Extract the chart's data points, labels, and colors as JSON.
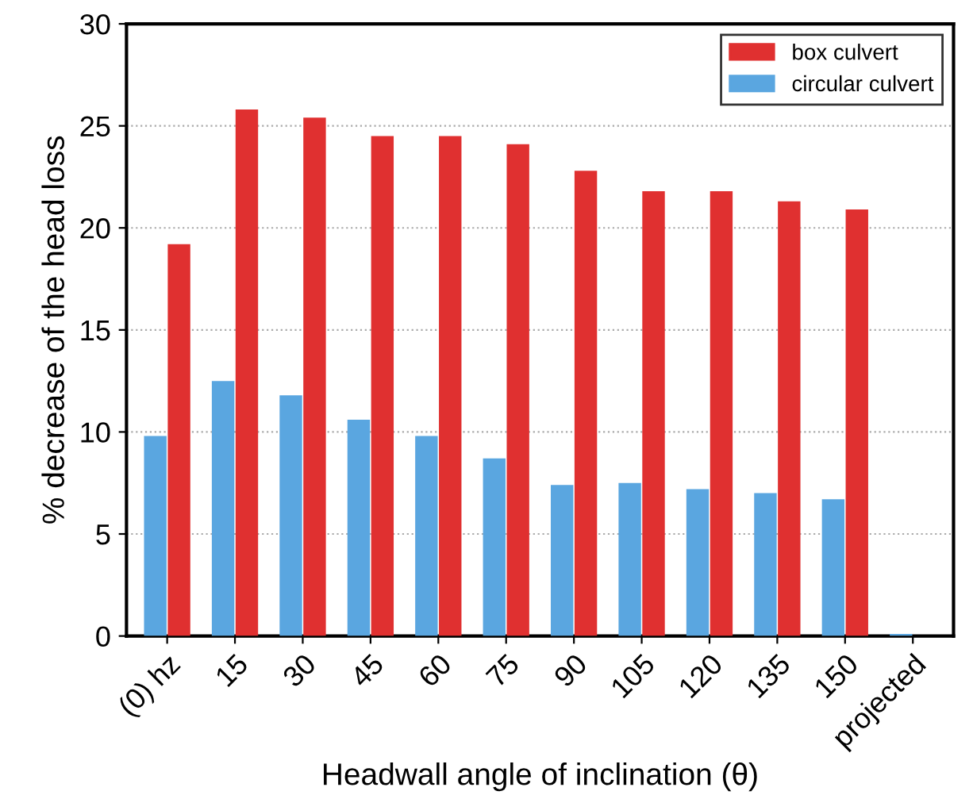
{
  "chart_data": {
    "type": "bar",
    "xlabel": "Headwall angle of inclination (θ)",
    "ylabel": "% decrease of the head loss",
    "categories": [
      "(0) hz",
      "15",
      "30",
      "45",
      "60",
      "75",
      "90",
      "105",
      "120",
      "135",
      "150",
      "projected"
    ],
    "series": [
      {
        "name": "circular culvert",
        "color": "#5aa6e0",
        "values": [
          9.8,
          12.5,
          11.8,
          10.6,
          9.8,
          8.7,
          7.4,
          7.5,
          7.2,
          7.0,
          6.7,
          0.1
        ]
      },
      {
        "name": "box culvert",
        "color": "#e03030",
        "values": [
          19.2,
          25.8,
          25.4,
          24.5,
          24.5,
          24.1,
          22.8,
          21.8,
          21.8,
          21.3,
          20.9,
          0
        ]
      }
    ],
    "ylim": [
      0,
      30
    ],
    "yticks": [
      0,
      5,
      10,
      15,
      20,
      25,
      30
    ],
    "grid": "y",
    "legend": "top right"
  }
}
